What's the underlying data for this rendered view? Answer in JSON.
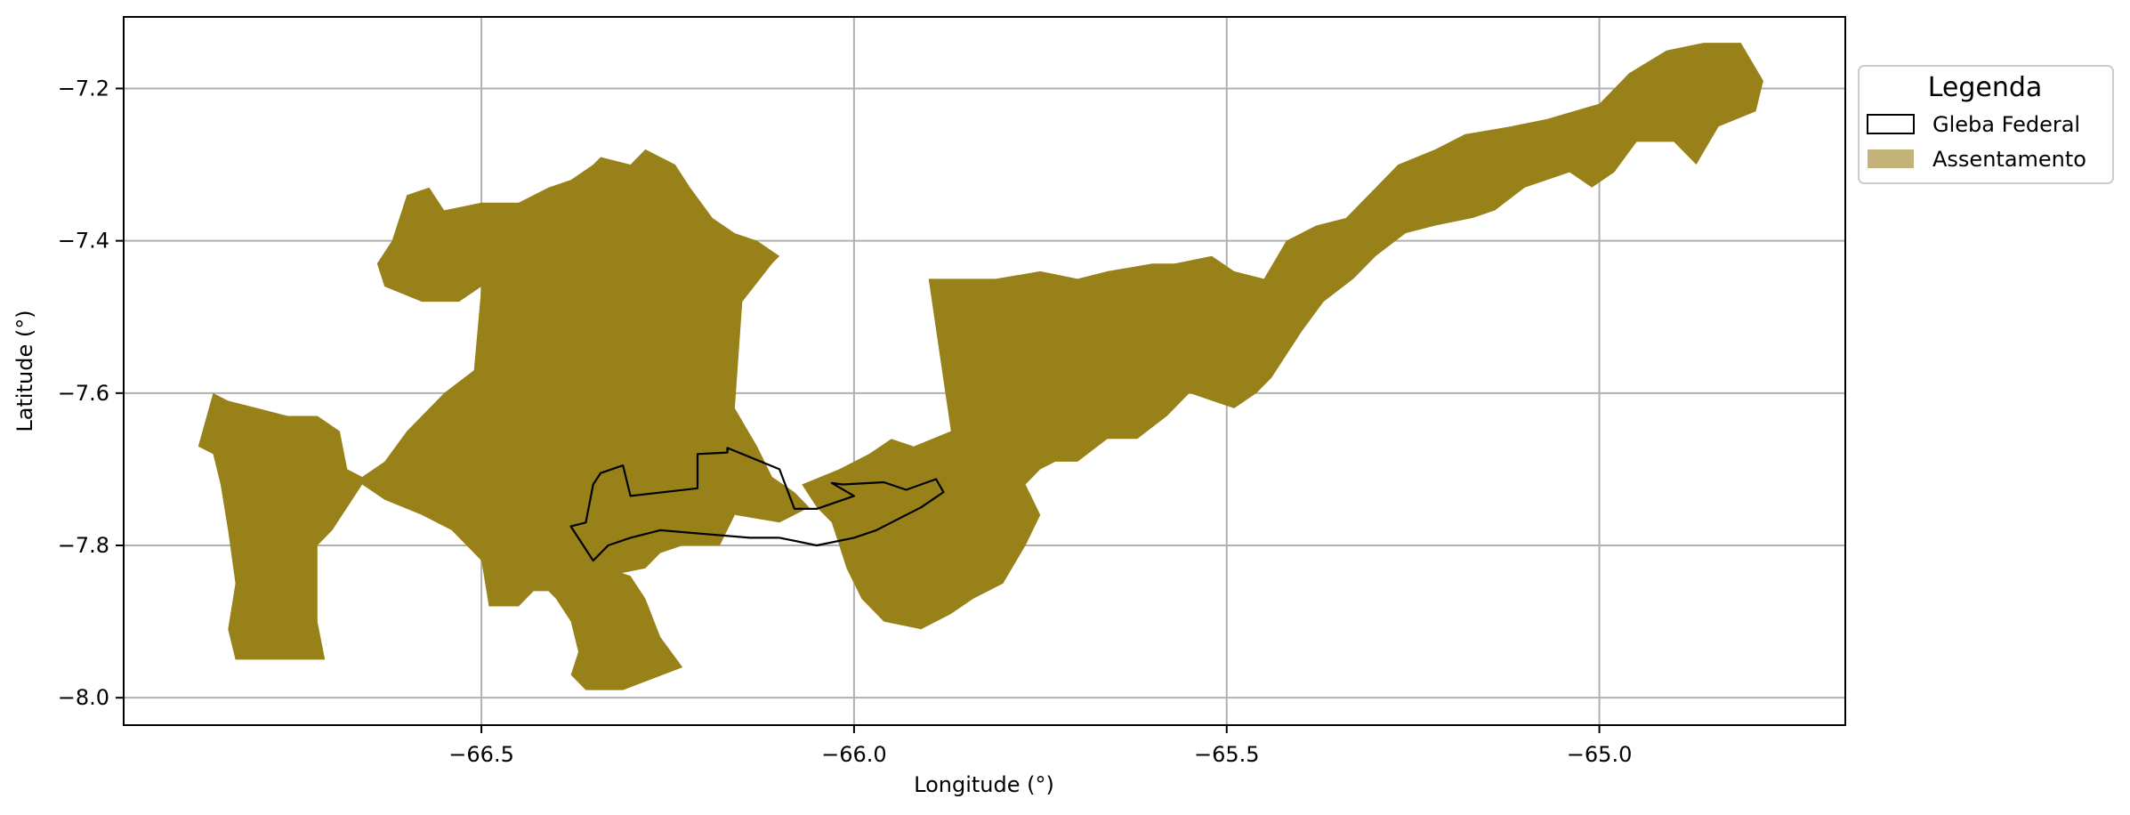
{
  "chart_data": {
    "type": "map",
    "title": "",
    "xlabel": "Longitude (°)",
    "ylabel": "Latitude (°)",
    "xlim": [
      -66.98,
      -64.67
    ],
    "ylim": [
      -8.036,
      -7.106
    ],
    "x_ticks": [
      {
        "value": -66.5,
        "label": "−66.5"
      },
      {
        "value": -66.0,
        "label": "−66.0"
      },
      {
        "value": -65.5,
        "label": "−65.5"
      },
      {
        "value": -65.0,
        "label": "−65.0"
      }
    ],
    "y_ticks": [
      {
        "value": -7.2,
        "label": "−7.2"
      },
      {
        "value": -7.4,
        "label": "−7.4"
      },
      {
        "value": -7.6,
        "label": "−7.6"
      },
      {
        "value": -7.8,
        "label": "−7.8"
      },
      {
        "value": -8.0,
        "label": "−8.0"
      }
    ],
    "grid": true,
    "legend": {
      "title": "Legenda",
      "placement": "outside upper-right",
      "entries": [
        {
          "label": "Gleba Federal",
          "style": "outline",
          "edge_color": "#000000",
          "fill": "none"
        },
        {
          "label": "Assentamento",
          "style": "filled",
          "fill": "#c4b379"
        }
      ]
    },
    "colors": {
      "assentamento": "#978118",
      "gleba_federal_edge": "#000000"
    },
    "layers": [
      {
        "name": "Assentamento",
        "polygons": [
          [
            [
              -66.88,
              -7.67
            ],
            [
              -66.86,
              -7.6
            ],
            [
              -66.84,
              -7.61
            ],
            [
              -66.8,
              -7.62
            ],
            [
              -66.76,
              -7.63
            ],
            [
              -66.72,
              -7.63
            ],
            [
              -66.69,
              -7.65
            ],
            [
              -66.68,
              -7.7
            ],
            [
              -66.66,
              -7.71
            ],
            [
              -66.63,
              -7.69
            ],
            [
              -66.6,
              -7.65
            ],
            [
              -66.55,
              -7.6
            ],
            [
              -66.51,
              -7.57
            ],
            [
              -66.5,
              -7.46
            ],
            [
              -66.53,
              -7.48
            ],
            [
              -66.58,
              -7.48
            ],
            [
              -66.63,
              -7.46
            ],
            [
              -66.64,
              -7.43
            ],
            [
              -66.62,
              -7.4
            ],
            [
              -66.6,
              -7.34
            ],
            [
              -66.57,
              -7.33
            ],
            [
              -66.55,
              -7.36
            ],
            [
              -66.5,
              -7.35
            ],
            [
              -66.45,
              -7.35
            ],
            [
              -66.41,
              -7.33
            ],
            [
              -66.38,
              -7.32
            ],
            [
              -66.35,
              -7.3
            ],
            [
              -66.34,
              -7.29
            ],
            [
              -66.3,
              -7.3
            ],
            [
              -66.28,
              -7.28
            ],
            [
              -66.24,
              -7.3
            ],
            [
              -66.22,
              -7.33
            ],
            [
              -66.19,
              -7.37
            ],
            [
              -66.16,
              -7.39
            ],
            [
              -66.13,
              -7.4
            ],
            [
              -66.1,
              -7.42
            ],
            [
              -66.11,
              -7.43
            ],
            [
              -66.15,
              -7.48
            ],
            [
              -66.16,
              -7.62
            ],
            [
              -66.13,
              -7.67
            ],
            [
              -66.11,
              -7.71
            ],
            [
              -66.08,
              -7.73
            ],
            [
              -66.06,
              -7.75
            ],
            [
              -66.1,
              -7.77
            ],
            [
              -66.16,
              -7.76
            ],
            [
              -66.18,
              -7.8
            ],
            [
              -66.23,
              -7.8
            ],
            [
              -66.26,
              -7.81
            ],
            [
              -66.28,
              -7.83
            ],
            [
              -66.33,
              -7.84
            ],
            [
              -66.37,
              -7.87
            ],
            [
              -66.4,
              -7.86
            ],
            [
              -66.43,
              -7.86
            ],
            [
              -66.45,
              -7.88
            ],
            [
              -66.49,
              -7.88
            ],
            [
              -66.5,
              -7.82
            ],
            [
              -66.54,
              -7.78
            ],
            [
              -66.58,
              -7.76
            ],
            [
              -66.63,
              -7.74
            ],
            [
              -66.66,
              -7.72
            ],
            [
              -66.68,
              -7.75
            ],
            [
              -66.7,
              -7.78
            ],
            [
              -66.72,
              -7.8
            ],
            [
              -66.72,
              -7.85
            ],
            [
              -66.72,
              -7.9
            ],
            [
              -66.71,
              -7.95
            ],
            [
              -66.83,
              -7.95
            ],
            [
              -66.84,
              -7.91
            ],
            [
              -66.83,
              -7.85
            ],
            [
              -66.84,
              -7.78
            ],
            [
              -66.85,
              -7.72
            ],
            [
              -66.86,
              -7.68
            ]
          ],
          [
            [
              -66.42,
              -7.85
            ],
            [
              -66.4,
              -7.87
            ],
            [
              -66.38,
              -7.9
            ],
            [
              -66.37,
              -7.94
            ],
            [
              -66.38,
              -7.97
            ],
            [
              -66.36,
              -7.99
            ],
            [
              -66.31,
              -7.99
            ],
            [
              -66.23,
              -7.96
            ],
            [
              -66.26,
              -7.92
            ],
            [
              -66.28,
              -7.87
            ],
            [
              -66.3,
              -7.84
            ],
            [
              -66.33,
              -7.83
            ],
            [
              -66.38,
              -7.84
            ],
            [
              -66.41,
              -7.84
            ]
          ],
          [
            [
              -66.07,
              -7.72
            ],
            [
              -66.02,
              -7.7
            ],
            [
              -65.98,
              -7.68
            ],
            [
              -65.95,
              -7.66
            ],
            [
              -65.92,
              -7.67
            ],
            [
              -65.87,
              -7.65
            ],
            [
              -65.9,
              -7.45
            ],
            [
              -65.87,
              -7.45
            ],
            [
              -65.81,
              -7.45
            ],
            [
              -65.75,
              -7.44
            ],
            [
              -65.7,
              -7.45
            ],
            [
              -65.66,
              -7.44
            ],
            [
              -65.6,
              -7.43
            ],
            [
              -65.57,
              -7.43
            ],
            [
              -65.52,
              -7.42
            ],
            [
              -65.49,
              -7.44
            ],
            [
              -65.45,
              -7.45
            ],
            [
              -65.42,
              -7.4
            ],
            [
              -65.38,
              -7.38
            ],
            [
              -65.34,
              -7.37
            ],
            [
              -65.3,
              -7.33
            ],
            [
              -65.27,
              -7.3
            ],
            [
              -65.22,
              -7.28
            ],
            [
              -65.18,
              -7.26
            ],
            [
              -65.12,
              -7.25
            ],
            [
              -65.07,
              -7.24
            ],
            [
              -65.0,
              -7.22
            ],
            [
              -64.96,
              -7.18
            ],
            [
              -64.91,
              -7.15
            ],
            [
              -64.86,
              -7.14
            ],
            [
              -64.81,
              -7.14
            ],
            [
              -64.78,
              -7.19
            ],
            [
              -64.79,
              -7.23
            ],
            [
              -64.84,
              -7.25
            ],
            [
              -64.87,
              -7.3
            ],
            [
              -64.9,
              -7.27
            ],
            [
              -64.95,
              -7.27
            ],
            [
              -64.98,
              -7.31
            ],
            [
              -65.01,
              -7.33
            ],
            [
              -65.04,
              -7.31
            ],
            [
              -65.1,
              -7.33
            ],
            [
              -65.14,
              -7.36
            ],
            [
              -65.17,
              -7.37
            ],
            [
              -65.22,
              -7.38
            ],
            [
              -65.26,
              -7.39
            ],
            [
              -65.3,
              -7.42
            ],
            [
              -65.33,
              -7.45
            ],
            [
              -65.37,
              -7.48
            ],
            [
              -65.4,
              -7.52
            ],
            [
              -65.42,
              -7.55
            ],
            [
              -65.44,
              -7.58
            ],
            [
              -65.46,
              -7.6
            ],
            [
              -65.49,
              -7.62
            ],
            [
              -65.52,
              -7.61
            ],
            [
              -65.55,
              -7.6
            ],
            [
              -65.58,
              -7.63
            ],
            [
              -65.62,
              -7.66
            ],
            [
              -65.66,
              -7.66
            ],
            [
              -65.7,
              -7.69
            ],
            [
              -65.73,
              -7.69
            ],
            [
              -65.75,
              -7.7
            ],
            [
              -65.77,
              -7.72
            ],
            [
              -65.75,
              -7.76
            ],
            [
              -65.77,
              -7.8
            ],
            [
              -65.8,
              -7.85
            ],
            [
              -65.84,
              -7.87
            ],
            [
              -65.87,
              -7.89
            ],
            [
              -65.91,
              -7.91
            ],
            [
              -65.96,
              -7.9
            ],
            [
              -65.99,
              -7.87
            ],
            [
              -66.01,
              -7.83
            ],
            [
              -66.02,
              -7.8
            ],
            [
              -66.03,
              -7.77
            ],
            [
              -66.05,
              -7.75
            ]
          ]
        ]
      },
      {
        "name": "Gleba Federal",
        "polygons": [
          [
            [
              -66.38,
              -7.775
            ],
            [
              -66.36,
              -7.77
            ],
            [
              -66.35,
              -7.72
            ],
            [
              -66.34,
              -7.705
            ],
            [
              -66.31,
              -7.695
            ],
            [
              -66.3,
              -7.735
            ],
            [
              -66.21,
              -7.725
            ],
            [
              -66.21,
              -7.68
            ],
            [
              -66.17,
              -7.678
            ],
            [
              -66.17,
              -7.672
            ],
            [
              -66.1,
              -7.7
            ],
            [
              -66.08,
              -7.752
            ],
            [
              -66.05,
              -7.752
            ],
            [
              -66.0,
              -7.735
            ],
            [
              -66.03,
              -7.718
            ],
            [
              -66.015,
              -7.72
            ],
            [
              -65.96,
              -7.717
            ],
            [
              -65.93,
              -7.727
            ],
            [
              -65.89,
              -7.713
            ],
            [
              -65.88,
              -7.73
            ],
            [
              -65.91,
              -7.75
            ],
            [
              -65.95,
              -7.77
            ],
            [
              -65.97,
              -7.78
            ],
            [
              -66.0,
              -7.79
            ],
            [
              -66.05,
              -7.8
            ],
            [
              -66.1,
              -7.79
            ],
            [
              -66.14,
              -7.79
            ],
            [
              -66.2,
              -7.785
            ],
            [
              -66.26,
              -7.78
            ],
            [
              -66.3,
              -7.79
            ],
            [
              -66.33,
              -7.8
            ],
            [
              -66.35,
              -7.82
            ]
          ]
        ]
      }
    ]
  }
}
